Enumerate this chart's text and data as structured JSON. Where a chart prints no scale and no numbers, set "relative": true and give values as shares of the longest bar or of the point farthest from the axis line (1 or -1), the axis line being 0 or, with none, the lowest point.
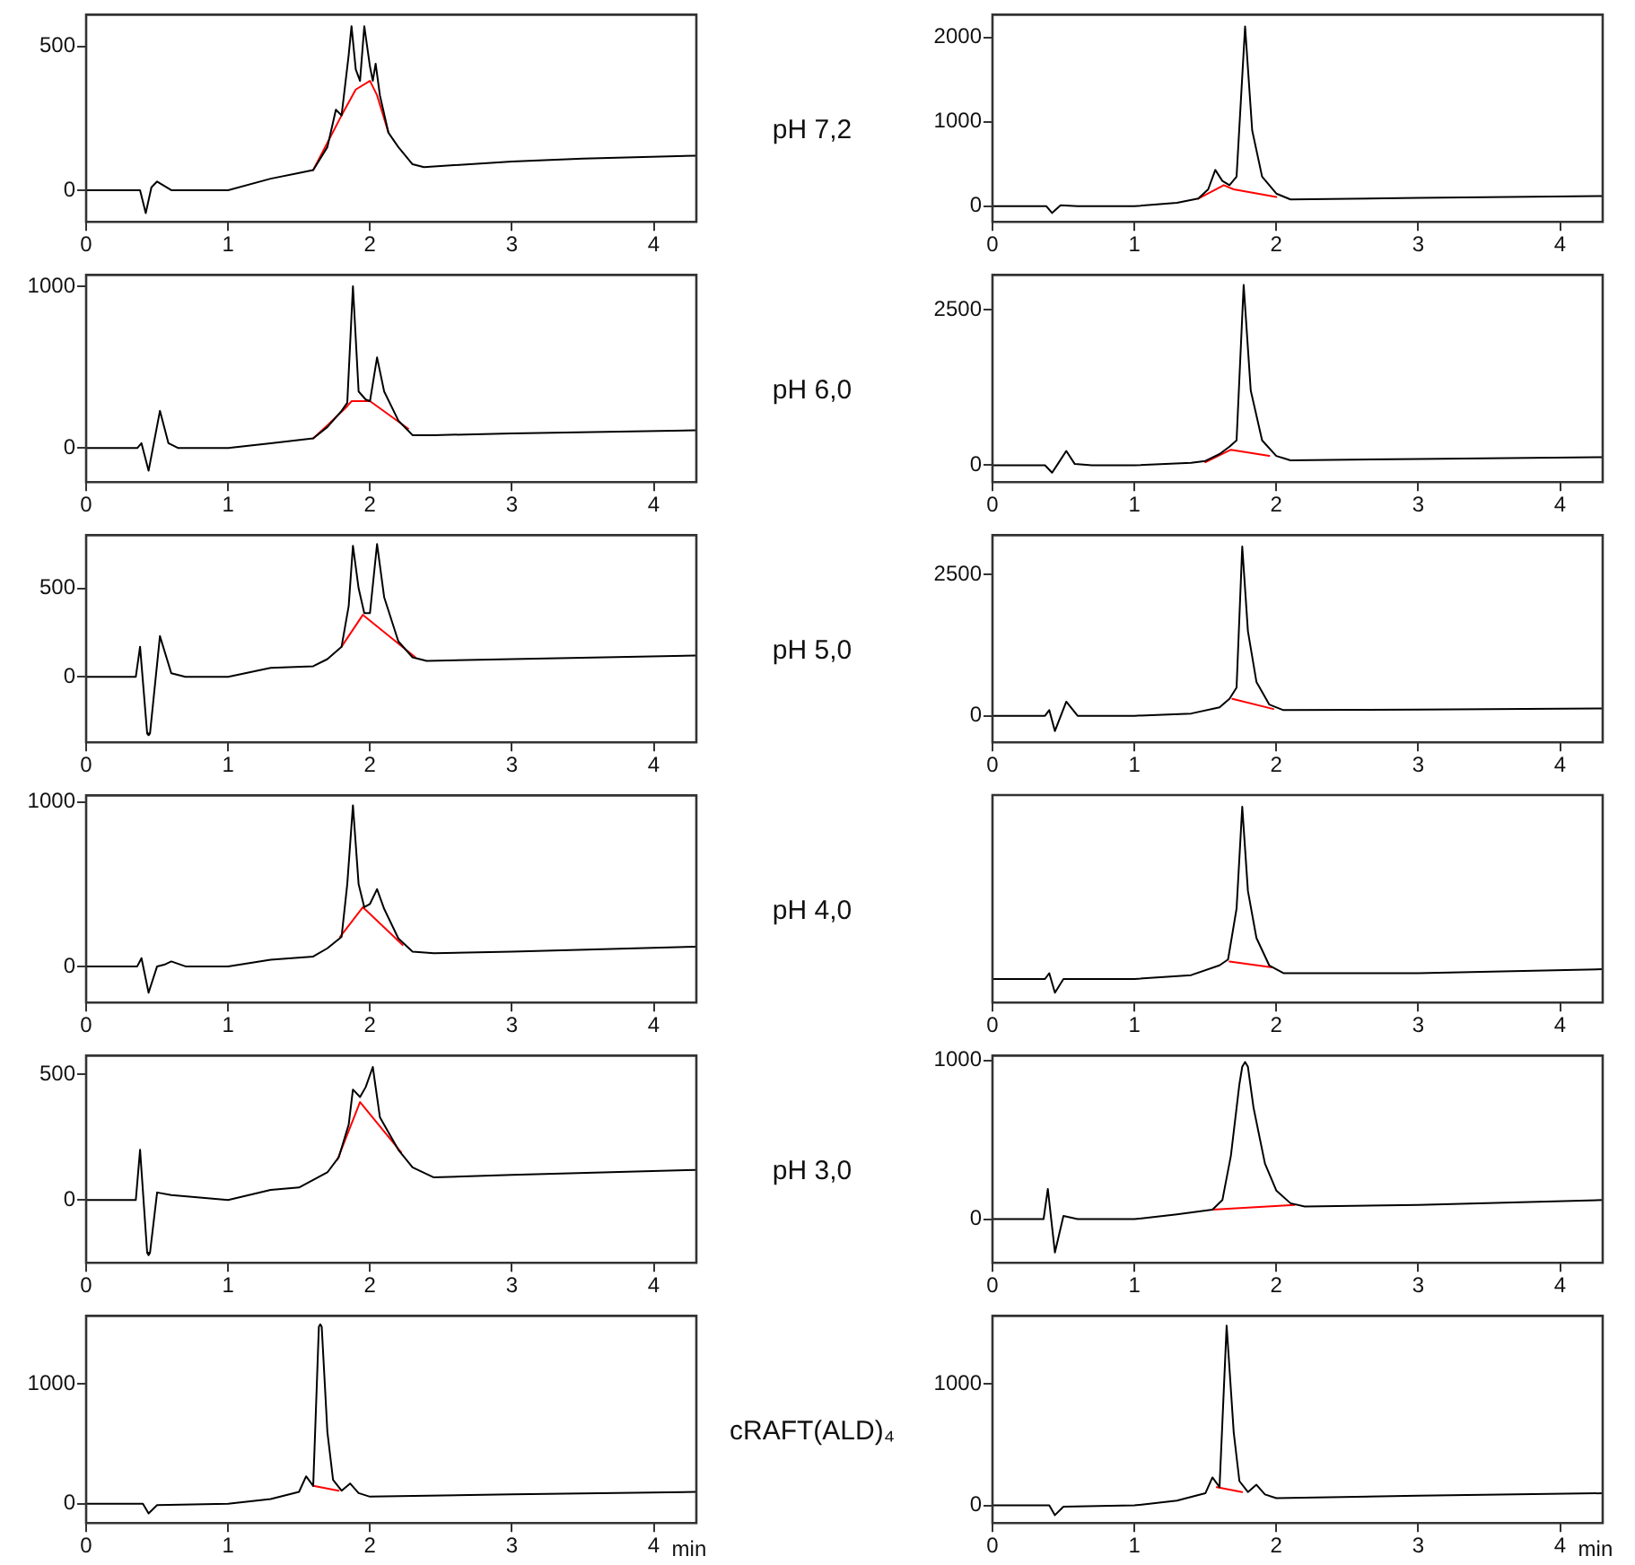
{
  "chart_data": [
    {
      "type": "line",
      "xlim": [
        0,
        4.3
      ],
      "xticks": [
        0,
        1,
        2,
        3,
        4
      ],
      "ylim": [
        -110,
        610
      ],
      "yticks": [
        0,
        500
      ],
      "grid": false,
      "legend": false,
      "marker": "none",
      "series": [
        {
          "color": "#000000",
          "x": [
            0,
            0.38,
            0.42,
            0.46,
            0.5,
            0.6,
            1.0,
            1.3,
            1.5,
            1.6,
            1.7,
            1.76,
            1.8,
            1.85,
            1.87,
            1.9,
            1.93,
            1.96,
            2.0,
            2.02,
            2.04,
            2.07,
            2.13,
            2.2,
            2.3,
            2.38,
            3.0,
            3.5,
            4.3
          ],
          "values": [
            0,
            0,
            -80,
            10,
            30,
            0,
            0,
            40,
            60,
            70,
            150,
            280,
            260,
            470,
            570,
            420,
            380,
            570,
            430,
            380,
            440,
            330,
            200,
            150,
            90,
            80,
            100,
            110,
            120
          ]
        },
        {
          "color": "#ff0000",
          "x": [
            1.6,
            1.8,
            1.9,
            2.0,
            2.05,
            2.13
          ],
          "values": [
            70,
            260,
            350,
            380,
            330,
            200
          ]
        }
      ]
    },
    {
      "type": "other",
      "title": "pH 7,2"
    },
    {
      "type": "line",
      "xlim": [
        0,
        4.3
      ],
      "xticks": [
        0,
        1,
        2,
        3,
        4
      ],
      "ylim": [
        -185,
        2270
      ],
      "yticks": [
        0,
        1000,
        2000
      ],
      "grid": false,
      "legend": false,
      "marker": "none",
      "series": [
        {
          "color": "#000000",
          "x": [
            0,
            0.38,
            0.42,
            0.48,
            0.6,
            1.0,
            1.3,
            1.45,
            1.52,
            1.57,
            1.62,
            1.67,
            1.72,
            1.78,
            1.83,
            1.9,
            2.0,
            2.1,
            3.0,
            4.3
          ],
          "values": [
            0,
            0,
            -80,
            10,
            0,
            0,
            40,
            90,
            200,
            430,
            300,
            250,
            350,
            2130,
            900,
            350,
            150,
            80,
            100,
            120
          ]
        },
        {
          "color": "#ff0000",
          "x": [
            1.45,
            1.63,
            1.7,
            2.0
          ],
          "values": [
            90,
            250,
            200,
            110
          ]
        }
      ]
    },
    {
      "type": "line",
      "xlim": [
        0,
        4.3
      ],
      "xticks": [
        0,
        1,
        2,
        3,
        4
      ],
      "ylim": [
        -210,
        1070
      ],
      "yticks": [
        0,
        1000
      ],
      "grid": false,
      "legend": false,
      "marker": "none",
      "series": [
        {
          "color": "#000000",
          "x": [
            0,
            0.36,
            0.39,
            0.44,
            0.52,
            0.58,
            0.65,
            1.0,
            1.3,
            1.6,
            1.7,
            1.8,
            1.84,
            1.88,
            1.92,
            1.97,
            2.0,
            2.05,
            2.1,
            2.2,
            2.3,
            2.45,
            3.0,
            4.3
          ],
          "values": [
            0,
            0,
            30,
            -140,
            230,
            30,
            0,
            0,
            30,
            60,
            130,
            230,
            280,
            1000,
            350,
            300,
            290,
            560,
            350,
            170,
            80,
            80,
            90,
            110
          ]
        },
        {
          "color": "#ff0000",
          "x": [
            1.6,
            1.7,
            1.83,
            1.87,
            2.0,
            2.27
          ],
          "values": [
            60,
            140,
            250,
            290,
            290,
            120
          ]
        }
      ]
    },
    {
      "type": "other",
      "title": "pH 6,0"
    },
    {
      "type": "line",
      "xlim": [
        0,
        4.3
      ],
      "xticks": [
        0,
        1,
        2,
        3,
        4
      ],
      "ylim": [
        -270,
        3060
      ],
      "yticks": [
        0,
        2500
      ],
      "grid": false,
      "legend": false,
      "marker": "none",
      "series": [
        {
          "color": "#000000",
          "x": [
            0,
            0.37,
            0.42,
            0.46,
            0.52,
            0.58,
            0.7,
            1.0,
            1.4,
            1.5,
            1.6,
            1.67,
            1.72,
            1.77,
            1.82,
            1.9,
            2.0,
            2.1,
            3.0,
            4.3
          ],
          "values": [
            0,
            0,
            -120,
            20,
            230,
            20,
            0,
            0,
            40,
            70,
            180,
            300,
            400,
            2900,
            1200,
            400,
            150,
            80,
            100,
            130
          ]
        },
        {
          "color": "#ff0000",
          "x": [
            1.5,
            1.68,
            1.95
          ],
          "values": [
            50,
            250,
            150
          ]
        }
      ]
    },
    {
      "type": "line",
      "xlim": [
        0,
        4.3
      ],
      "xticks": [
        0,
        1,
        2,
        3,
        4
      ],
      "ylim": [
        -370,
        800
      ],
      "yticks": [
        0,
        500
      ],
      "grid": false,
      "legend": false,
      "marker": "none",
      "series": [
        {
          "color": "#000000",
          "x": [
            0,
            0.35,
            0.38,
            0.43,
            0.44,
            0.45,
            0.52,
            0.6,
            0.7,
            1.0,
            1.3,
            1.6,
            1.7,
            1.8,
            1.85,
            1.88,
            1.92,
            1.96,
            2.0,
            2.05,
            2.1,
            2.2,
            2.3,
            2.4,
            3.0,
            4.3
          ],
          "values": [
            0,
            0,
            170,
            -320,
            -330,
            -320,
            230,
            20,
            0,
            0,
            50,
            60,
            100,
            170,
            400,
            740,
            500,
            360,
            360,
            750,
            450,
            200,
            110,
            90,
            100,
            120
          ]
        },
        {
          "color": "#ff0000",
          "x": [
            1.8,
            1.95,
            2.32
          ],
          "values": [
            170,
            350,
            110
          ]
        }
      ]
    },
    {
      "type": "other",
      "title": "pH 5,0"
    },
    {
      "type": "line",
      "xlim": [
        0,
        4.3
      ],
      "xticks": [
        0,
        1,
        2,
        3,
        4
      ],
      "ylim": [
        -470,
        3200
      ],
      "yticks": [
        0,
        2500
      ],
      "grid": false,
      "legend": false,
      "marker": "none",
      "series": [
        {
          "color": "#000000",
          "x": [
            0,
            0.37,
            0.4,
            0.44,
            0.52,
            0.6,
            1.0,
            1.4,
            1.6,
            1.67,
            1.72,
            1.76,
            1.8,
            1.86,
            1.95,
            2.05,
            3.0,
            4.3
          ],
          "values": [
            0,
            0,
            100,
            -270,
            250,
            0,
            0,
            40,
            150,
            300,
            500,
            3000,
            1500,
            600,
            200,
            100,
            110,
            130
          ]
        },
        {
          "color": "#ff0000",
          "x": [
            1.69,
            1.98
          ],
          "values": [
            300,
            120
          ]
        }
      ]
    },
    {
      "type": "line",
      "xlim": [
        0,
        4.3
      ],
      "xticks": [
        0,
        1,
        2,
        3,
        4
      ],
      "ylim": [
        -220,
        1040
      ],
      "yticks": [
        0,
        1000
      ],
      "grid": false,
      "legend": false,
      "marker": "none",
      "series": [
        {
          "color": "#000000",
          "x": [
            0,
            0.36,
            0.39,
            0.44,
            0.5,
            0.55,
            0.6,
            0.7,
            1.0,
            1.3,
            1.6,
            1.7,
            1.8,
            1.84,
            1.88,
            1.92,
            1.96,
            2.0,
            2.05,
            2.1,
            2.2,
            2.3,
            2.45,
            3.0,
            4.3
          ],
          "values": [
            0,
            0,
            50,
            -160,
            0,
            10,
            30,
            0,
            0,
            40,
            60,
            110,
            180,
            500,
            980,
            500,
            360,
            380,
            470,
            350,
            170,
            90,
            80,
            90,
            120
          ]
        },
        {
          "color": "#ff0000",
          "x": [
            1.79,
            1.95,
            2.23
          ],
          "values": [
            180,
            360,
            130
          ]
        }
      ]
    },
    {
      "type": "other",
      "title": "pH 4,0"
    },
    {
      "type": "line",
      "relative": true,
      "xlim": [
        0,
        4.3
      ],
      "xticks": [
        0,
        1,
        2,
        3,
        4
      ],
      "grid": false,
      "legend": false,
      "marker": "none",
      "series": [
        {
          "color": "#000000",
          "x": [
            0,
            0.37,
            0.4,
            0.44,
            0.5,
            0.6,
            1.0,
            1.4,
            1.6,
            1.66,
            1.72,
            1.76,
            1.8,
            1.86,
            1.95,
            2.05,
            3.0,
            4.3
          ],
          "values": [
            0.12,
            0.12,
            0.15,
            0.05,
            0.12,
            0.12,
            0.12,
            0.14,
            0.19,
            0.22,
            0.48,
            1,
            0.57,
            0.33,
            0.19,
            0.15,
            0.15,
            0.17
          ]
        },
        {
          "color": "#ff0000",
          "x": [
            1.67,
            1.97
          ],
          "values": [
            0.21,
            0.18
          ]
        }
      ]
    },
    {
      "type": "line",
      "xlim": [
        0,
        4.3
      ],
      "xticks": [
        0,
        1,
        2,
        3,
        4
      ],
      "ylim": [
        -250,
        575
      ],
      "yticks": [
        0,
        500
      ],
      "grid": false,
      "legend": false,
      "marker": "none",
      "series": [
        {
          "color": "#000000",
          "x": [
            0,
            0.35,
            0.38,
            0.43,
            0.44,
            0.45,
            0.5,
            0.6,
            1.0,
            1.3,
            1.5,
            1.7,
            1.78,
            1.85,
            1.88,
            1.93,
            1.97,
            2.02,
            2.07,
            2.2,
            2.3,
            2.45,
            3.0,
            4.3
          ],
          "values": [
            0,
            0,
            200,
            -210,
            -220,
            -210,
            30,
            20,
            0,
            40,
            50,
            110,
            170,
            300,
            440,
            410,
            450,
            530,
            330,
            200,
            130,
            90,
            100,
            120
          ]
        },
        {
          "color": "#ff0000",
          "x": [
            1.77,
            1.93,
            2.22
          ],
          "values": [
            160,
            390,
            190
          ]
        }
      ]
    },
    {
      "type": "other",
      "title": "pH 3,0"
    },
    {
      "type": "line",
      "xlim": [
        0,
        4.3
      ],
      "xticks": [
        0,
        1,
        2,
        3,
        4
      ],
      "ylim": [
        -275,
        1030
      ],
      "yticks": [
        0,
        1000
      ],
      "grid": false,
      "legend": false,
      "marker": "none",
      "series": [
        {
          "color": "#000000",
          "x": [
            0,
            0.36,
            0.39,
            0.44,
            0.5,
            0.6,
            1.0,
            1.3,
            1.55,
            1.62,
            1.68,
            1.74,
            1.76,
            1.78,
            1.8,
            1.84,
            1.92,
            2.0,
            2.1,
            2.2,
            3.0,
            4.3
          ],
          "values": [
            0,
            0,
            190,
            -210,
            20,
            0,
            0,
            30,
            60,
            120,
            400,
            850,
            960,
            990,
            960,
            700,
            350,
            180,
            100,
            80,
            90,
            120
          ]
        },
        {
          "color": "#ff0000",
          "x": [
            1.55,
            2.13
          ],
          "values": [
            60,
            90
          ]
        }
      ]
    },
    {
      "type": "line",
      "xlabel": "min",
      "xlim": [
        0,
        4.3
      ],
      "xticks": [
        0,
        1,
        2,
        3,
        4
      ],
      "ylim": [
        -160,
        1570
      ],
      "yticks": [
        0,
        1000
      ],
      "grid": false,
      "legend": false,
      "marker": "none",
      "series": [
        {
          "color": "#000000",
          "x": [
            0,
            0.4,
            0.44,
            0.5,
            1.0,
            1.3,
            1.5,
            1.55,
            1.6,
            1.64,
            1.65,
            1.66,
            1.7,
            1.74,
            1.8,
            1.86,
            1.92,
            2.0,
            3.0,
            4.3
          ],
          "values": [
            0,
            0,
            -80,
            -10,
            0,
            40,
            100,
            230,
            150,
            1480,
            1500,
            1480,
            600,
            200,
            110,
            170,
            90,
            60,
            80,
            100
          ]
        },
        {
          "color": "#ff0000",
          "x": [
            1.6,
            1.78
          ],
          "values": [
            150,
            110
          ]
        }
      ]
    },
    {
      "type": "other",
      "title": "cRAFT(ALD)₄"
    },
    {
      "type": "line",
      "xlabel": "min",
      "xlim": [
        0,
        4.3
      ],
      "xticks": [
        0,
        1,
        2,
        3,
        4
      ],
      "ylim": [
        -145,
        1560
      ],
      "yticks": [
        0,
        1000
      ],
      "grid": false,
      "legend": false,
      "marker": "none",
      "series": [
        {
          "color": "#000000",
          "x": [
            0,
            0.4,
            0.44,
            0.5,
            1.0,
            1.3,
            1.5,
            1.55,
            1.6,
            1.65,
            1.7,
            1.74,
            1.8,
            1.86,
            1.92,
            2.0,
            3.0,
            4.3
          ],
          "values": [
            0,
            0,
            -80,
            -10,
            0,
            40,
            100,
            230,
            150,
            1480,
            600,
            200,
            110,
            170,
            90,
            60,
            80,
            100
          ]
        },
        {
          "color": "#ff0000",
          "x": [
            1.58,
            1.76
          ],
          "values": [
            150,
            110
          ]
        }
      ]
    }
  ]
}
